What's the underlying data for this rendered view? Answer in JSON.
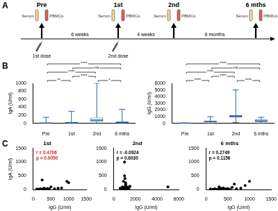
{
  "panel_labels": [
    "A",
    "B",
    "C"
  ],
  "diagram": {
    "timepoints": [
      {
        "label": "Pre",
        "tube_labels": [
          "Serum",
          "PBMCs"
        ]
      },
      {
        "label": "1st",
        "tube_labels": [
          "Serum",
          "PBMCs"
        ]
      },
      {
        "label": "2nd",
        "tube_labels": [
          "Serum",
          "PBMCs"
        ]
      },
      {
        "label": "6 mths",
        "tube_labels": [
          "Serum",
          "PBMCs"
        ]
      }
    ],
    "intervals": [
      "6 weeks",
      "4 weeks",
      "6 months"
    ],
    "doses": [
      "1st dose",
      "2nd dose"
    ]
  },
  "chart_data": [
    {
      "type": "box",
      "y_label": "IgA (U/ml)",
      "categories": [
        "Pre",
        "1st",
        "2nd",
        "6 mths"
      ],
      "min": [
        0,
        0,
        5,
        0
      ],
      "q1": [
        2,
        5,
        40,
        10
      ],
      "median": [
        5,
        12,
        80,
        20
      ],
      "q3": [
        10,
        25,
        140,
        40
      ],
      "max": [
        150,
        300,
        1000,
        350
      ],
      "color": "#2b5fa8",
      "ylim": [
        0,
        1000
      ],
      "yticks": [
        0,
        200,
        400,
        600,
        800,
        1000
      ],
      "grid": false,
      "annotations": [
        {
          "from": "Pre",
          "to": "1st",
          "label": "**"
        },
        {
          "from": "2nd",
          "to": "6 mths",
          "label": "*"
        },
        {
          "from": "1st",
          "to": "2nd",
          "label": "****"
        },
        {
          "from": "Pre",
          "to": "2nd",
          "label": "****"
        },
        {
          "from": "1st",
          "to": "6 mths",
          "label": "ns"
        },
        {
          "from": "Pre",
          "to": "6 mths",
          "label": "****"
        }
      ]
    },
    {
      "type": "box",
      "y_label": "IgG (U/ml)",
      "categories": [
        "Pre",
        "1st",
        "2nd",
        "6 mths"
      ],
      "min": [
        0,
        10,
        100,
        20
      ],
      "q1": [
        2,
        150,
        900,
        200
      ],
      "median": [
        5,
        250,
        1100,
        350
      ],
      "q3": [
        10,
        400,
        1200,
        550
      ],
      "max": [
        50,
        1000,
        5000,
        900
      ],
      "color": "#2b5fa8",
      "ylim": [
        0,
        6000
      ],
      "yticks": [
        0,
        1000,
        2000,
        3000,
        4000,
        5000,
        6000
      ],
      "grid": false,
      "annotations": [
        {
          "from": "Pre",
          "to": "1st",
          "label": "****"
        },
        {
          "from": "2nd",
          "to": "6 mths",
          "label": "****"
        },
        {
          "from": "1st",
          "to": "2nd",
          "label": "****"
        },
        {
          "from": "Pre",
          "to": "2nd",
          "label": "****"
        },
        {
          "from": "1st",
          "to": "6 mths",
          "label": "ns"
        },
        {
          "from": "Pre",
          "to": "6 mths",
          "label": "****"
        }
      ]
    },
    {
      "type": "scatter",
      "title": "1st",
      "x_label": "IgG (U/ml)",
      "y_label": "IgA (U/ml)",
      "x": [
        100,
        150,
        200,
        250,
        300,
        350,
        400,
        450,
        500,
        200,
        600,
        700,
        150,
        800,
        1000,
        950,
        300,
        250,
        120,
        400
      ],
      "values": [
        20,
        10,
        30,
        15,
        50,
        20,
        40,
        25,
        100,
        5,
        30,
        50,
        5,
        60,
        250,
        300,
        10,
        350,
        8,
        15
      ],
      "color": "#000000",
      "xlim": [
        0,
        1500
      ],
      "xticks": [
        0,
        500,
        1000,
        1500
      ],
      "ylim": [
        0,
        1500
      ],
      "yticks": [
        0,
        500,
        1000,
        1500
      ],
      "grid": false,
      "annotation": {
        "text": [
          "r = 0.4706",
          "p = 0.0050"
        ],
        "color": "#e02020"
      }
    },
    {
      "type": "scatter",
      "title": "2nd",
      "x_label": "IgG (U/ml)",
      "x": [
        600,
        800,
        900,
        1000,
        1100,
        1200,
        1100,
        1300,
        1000,
        1400,
        1500,
        900,
        1200,
        1000,
        5000,
        700,
        1100,
        1250,
        950,
        1050
      ],
      "values": [
        50,
        100,
        30,
        80,
        150,
        60,
        200,
        90,
        1000,
        40,
        120,
        300,
        20,
        500,
        100,
        10,
        250,
        70,
        40,
        400
      ],
      "color": "#000000",
      "xlim": [
        0,
        6000
      ],
      "xticks": [
        0,
        2000,
        4000,
        6000
      ],
      "ylim": [
        0,
        1500
      ],
      "yticks": [
        0,
        500,
        1000,
        1500
      ],
      "grid": false,
      "annotation": {
        "text": [
          "r = -0.0924",
          "p = 0.6030"
        ],
        "color": "#000000"
      }
    },
    {
      "type": "scatter",
      "title": "6 mths",
      "x_label": "IgG (U/ml)",
      "x": [
        100,
        200,
        300,
        350,
        400,
        500,
        250,
        600,
        700,
        900,
        1000,
        300,
        450,
        550,
        800,
        150,
        650,
        400,
        200,
        350
      ],
      "values": [
        20,
        30,
        50,
        20,
        60,
        40,
        10,
        80,
        30,
        150,
        300,
        100,
        25,
        15,
        50,
        5,
        200,
        35,
        12,
        45
      ],
      "color": "#000000",
      "xlim": [
        0,
        1500
      ],
      "xticks": [
        0,
        500,
        1000,
        1500
      ],
      "ylim": [
        0,
        1500
      ],
      "yticks": [
        0,
        500,
        1000,
        1500
      ],
      "grid": false,
      "annotation": {
        "text": [
          "r = 0.2749",
          "p = 0.1156"
        ],
        "color": "#000000"
      }
    }
  ]
}
